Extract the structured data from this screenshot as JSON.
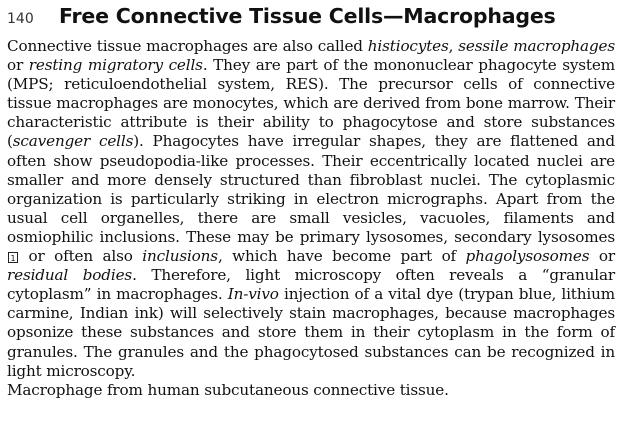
{
  "header": {
    "page_number": "140",
    "title": "Free Connective Tissue Cells—Macrophages"
  },
  "body": {
    "seg01": "Connective tissue macrophages are also called ",
    "seg02": "histiocytes",
    "seg03": ", ",
    "seg04": "sessile macro­phages",
    "seg05": " or ",
    "seg06": "resting migratory cells",
    "seg07": ". They are part of the mononuclear phagocyte system (MPS; reticuloendothelial system, RES). The precursor cells of con­nective tissue macrophages are monocytes, which are derived from bone marrow. Their characteristic attribute is their ability to phagocytose and store substances (",
    "seg08": "scavenger cells",
    "seg09": "). Phagocytes have irregular shapes, they are flattened and often show pseudopodia-like processes. Their eccentrically lo­cated nuclei are smaller and more densely structured than fibroblast nuclei. The cytoplasmic organization is particularly striking in electron micro­graphs. Apart from the usual cell organelles, there are small vesicles, va­cuoles, filaments and osmiophilic inclusions. These may be primary lyso­somes, secondary lysosomes ",
    "ref_marker": "1",
    "seg10": " or often also ",
    "seg11": "inclusions",
    "seg12": ", which have become part of ",
    "seg13": "phagolysosomes",
    "seg14": " or ",
    "seg15": "residual bodies",
    "seg16": ". Therefore, light microscopy often reveals a “granular cytoplasm” in macrophages. ",
    "seg17": "In-vivo",
    "seg18": " injection of a vital dye (trypan blue, lithium carmine, Indian ink) will selectively stain macro­phages, because macrophages opsonize these substances and store them in their cytoplasm in the form of granules. The granules and the phagocytosed substances can be recognized in light microscopy."
  },
  "caption": "Macrophage from human subcutaneous connective tissue."
}
